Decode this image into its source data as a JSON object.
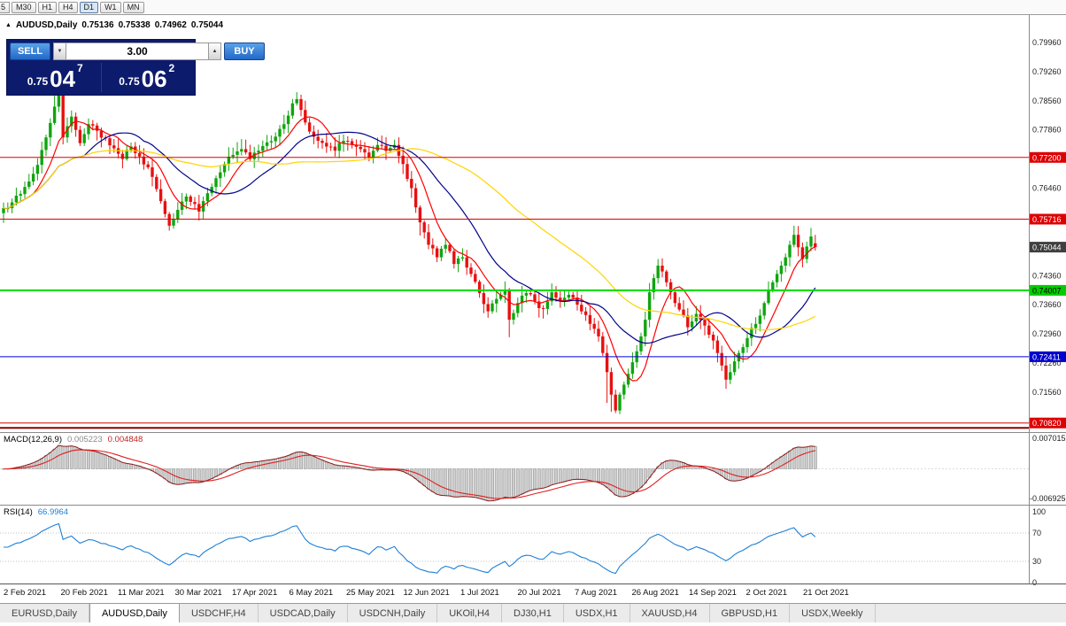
{
  "toolbar": {
    "periods": [
      "5",
      "M30",
      "H1",
      "H4",
      "D1",
      "W1",
      "MN"
    ],
    "active": "D1"
  },
  "chart_header": {
    "marker": "▲",
    "symbol": "AUDUSD,Daily",
    "open": "0.75136",
    "high": "0.75338",
    "low": "0.74962",
    "close": "0.75044"
  },
  "trade_panel": {
    "sell_label": "SELL",
    "buy_label": "BUY",
    "lot_size": "3.00",
    "spinner_down_icon": "▼",
    "spinner_up_icon": "▲",
    "sell_price": {
      "prefix": "0.75",
      "big": "04",
      "sup": "7"
    },
    "buy_price": {
      "prefix": "0.75",
      "big": "06",
      "sup": "2"
    }
  },
  "price_axis": {
    "labels": [
      "0.79960",
      "0.79260",
      "0.78560",
      "0.77860",
      "0.76460",
      "0.74360",
      "0.73660",
      "0.72960",
      "0.72260",
      "0.71560"
    ],
    "badges": [
      {
        "text": "0.77200",
        "bg": "#dd0000",
        "fg": "#ffffff"
      },
      {
        "text": "0.75716",
        "bg": "#dd0000",
        "fg": "#ffffff"
      },
      {
        "text": "0.75044",
        "bg": "#3f3f3f",
        "fg": "#ffffff"
      },
      {
        "text": "0.74007",
        "bg": "#00cc00",
        "fg": "#000000"
      },
      {
        "text": "0.72411",
        "bg": "#0000cc",
        "fg": "#ffffff"
      },
      {
        "text": "0.70820",
        "bg": "#dd0000",
        "fg": "#ffffff"
      }
    ]
  },
  "indicators": {
    "macd": {
      "label": "MACD(12,26,9)",
      "value_main": "0.005223",
      "value_signal": "0.004848",
      "axis_top": "0.007015",
      "axis_bottom": "-0.006925"
    },
    "rsi": {
      "label": "RSI(14)",
      "value": "66.9964",
      "axis": [
        "100",
        "70",
        "30",
        "0"
      ],
      "levels": [
        70,
        30
      ]
    }
  },
  "time_axis": {
    "labels": [
      "2 Feb 2021",
      "20 Feb 2021",
      "11 Mar 2021",
      "30 Mar 2021",
      "17 Apr 2021",
      "6 May 2021",
      "25 May 2021",
      "12 Jun 2021",
      "1 Jul 2021",
      "20 Jul 2021",
      "7 Aug 2021",
      "26 Aug 2021",
      "14 Sep 2021",
      "2 Oct 2021",
      "21 Oct 2021"
    ]
  },
  "tabs": {
    "items": [
      "EURUSD,Daily",
      "AUDUSD,Daily",
      "USDCHF,H4",
      "USDCAD,Daily",
      "USDCNH,Daily",
      "UKOil,H4",
      "DJ30,H1",
      "USDX,H1",
      "XAUUSD,H4",
      "GBPUSD,H1",
      "USDX,Weekly"
    ],
    "active": "AUDUSD,Daily"
  },
  "chart_data": {
    "type": "candlestick",
    "symbol": "AUDUSD",
    "timeframe": "Daily",
    "bars": 192,
    "price_range": {
      "min": 0.706,
      "max": 0.8062
    },
    "current_price": 0.75044,
    "last_candle": {
      "open": 0.75136,
      "high": 0.75338,
      "low": 0.74962,
      "close": 0.75044
    },
    "candle_colors": {
      "up": "#0fa50f",
      "down": "#e81010"
    },
    "close_anchors": [
      [
        0,
        0.7598
      ],
      [
        2,
        0.7612
      ],
      [
        4,
        0.7632
      ],
      [
        6,
        0.7662
      ],
      [
        8,
        0.7702
      ],
      [
        10,
        0.7768
      ],
      [
        12,
        0.7842
      ],
      [
        13,
        0.7875
      ],
      [
        14,
        0.7768
      ],
      [
        15,
        0.7795
      ],
      [
        16,
        0.7818
      ],
      [
        17,
        0.7786
      ],
      [
        18,
        0.7754
      ],
      [
        19,
        0.7776
      ],
      [
        20,
        0.78
      ],
      [
        22,
        0.7784
      ],
      [
        24,
        0.7766
      ],
      [
        26,
        0.7742
      ],
      [
        28,
        0.7716
      ],
      [
        30,
        0.7746
      ],
      [
        32,
        0.7722
      ],
      [
        34,
        0.7696
      ],
      [
        36,
        0.7644
      ],
      [
        38,
        0.7584
      ],
      [
        39,
        0.7556
      ],
      [
        40,
        0.7572
      ],
      [
        41,
        0.7594
      ],
      [
        43,
        0.7626
      ],
      [
        45,
        0.7608
      ],
      [
        46,
        0.759
      ],
      [
        48,
        0.7634
      ],
      [
        50,
        0.767
      ],
      [
        52,
        0.7704
      ],
      [
        54,
        0.7726
      ],
      [
        56,
        0.774
      ],
      [
        58,
        0.7716
      ],
      [
        60,
        0.7736
      ],
      [
        62,
        0.7756
      ],
      [
        64,
        0.777
      ],
      [
        66,
        0.78
      ],
      [
        68,
        0.785
      ],
      [
        69,
        0.786
      ],
      [
        70,
        0.7834
      ],
      [
        71,
        0.7804
      ],
      [
        72,
        0.7782
      ],
      [
        74,
        0.776
      ],
      [
        76,
        0.7746
      ],
      [
        78,
        0.7736
      ],
      [
        80,
        0.776
      ],
      [
        82,
        0.775
      ],
      [
        84,
        0.774
      ],
      [
        86,
        0.772
      ],
      [
        88,
        0.775
      ],
      [
        90,
        0.7736
      ],
      [
        92,
        0.775
      ],
      [
        94,
        0.7704
      ],
      [
        96,
        0.7646
      ],
      [
        98,
        0.7564
      ],
      [
        100,
        0.751
      ],
      [
        102,
        0.748
      ],
      [
        104,
        0.751
      ],
      [
        106,
        0.7464
      ],
      [
        108,
        0.748
      ],
      [
        110,
        0.744
      ],
      [
        112,
        0.7394
      ],
      [
        114,
        0.735
      ],
      [
        116,
        0.738
      ],
      [
        118,
        0.74
      ],
      [
        119,
        0.733
      ],
      [
        120,
        0.7346
      ],
      [
        121,
        0.737
      ],
      [
        123,
        0.7394
      ],
      [
        125,
        0.7374
      ],
      [
        127,
        0.7356
      ],
      [
        129,
        0.7396
      ],
      [
        131,
        0.7376
      ],
      [
        133,
        0.739
      ],
      [
        135,
        0.7366
      ],
      [
        136,
        0.735
      ],
      [
        138,
        0.732
      ],
      [
        140,
        0.729
      ],
      [
        141,
        0.725
      ],
      [
        142,
        0.7204
      ],
      [
        143,
        0.715
      ],
      [
        144,
        0.7112
      ],
      [
        145,
        0.715
      ],
      [
        146,
        0.7174
      ],
      [
        147,
        0.72
      ],
      [
        149,
        0.7254
      ],
      [
        150,
        0.729
      ],
      [
        151,
        0.733
      ],
      [
        152,
        0.7396
      ],
      [
        153,
        0.743
      ],
      [
        154,
        0.746
      ],
      [
        155,
        0.7446
      ],
      [
        156,
        0.742
      ],
      [
        157,
        0.7396
      ],
      [
        158,
        0.737
      ],
      [
        160,
        0.734
      ],
      [
        161,
        0.7312
      ],
      [
        162,
        0.7326
      ],
      [
        163,
        0.7344
      ],
      [
        164,
        0.733
      ],
      [
        165,
        0.7316
      ],
      [
        166,
        0.7294
      ],
      [
        167,
        0.728
      ],
      [
        168,
        0.725
      ],
      [
        169,
        0.722
      ],
      [
        170,
        0.7186
      ],
      [
        171,
        0.7204
      ],
      [
        172,
        0.723
      ],
      [
        173,
        0.725
      ],
      [
        174,
        0.7264
      ],
      [
        175,
        0.7286
      ],
      [
        176,
        0.731
      ],
      [
        177,
        0.732
      ],
      [
        178,
        0.734
      ],
      [
        179,
        0.737
      ],
      [
        180,
        0.74
      ],
      [
        181,
        0.742
      ],
      [
        182,
        0.744
      ],
      [
        183,
        0.746
      ],
      [
        184,
        0.748
      ],
      [
        185,
        0.751
      ],
      [
        186,
        0.7534
      ],
      [
        187,
        0.7504
      ],
      [
        188,
        0.7476
      ],
      [
        189,
        0.7506
      ],
      [
        190,
        0.753
      ],
      [
        191,
        0.75044
      ]
    ],
    "wick_overrides": [
      {
        "i": 12,
        "high": 0.7868
      },
      {
        "i": 13,
        "high": 0.7888
      },
      {
        "i": 39,
        "low": 0.7544
      },
      {
        "i": 98,
        "low": 0.7532
      },
      {
        "i": 119,
        "low": 0.7288
      },
      {
        "i": 142,
        "low": 0.713
      },
      {
        "i": 143,
        "low": 0.7109
      },
      {
        "i": 144,
        "low": 0.7106
      },
      {
        "i": 170,
        "low": 0.7164
      },
      {
        "i": 186,
        "high": 0.7556
      }
    ],
    "moving_averages": [
      {
        "period": 8,
        "color": "#ff0000"
      },
      {
        "period": 20,
        "color": "#00008b"
      },
      {
        "period": 50,
        "color": "#ffd400"
      }
    ],
    "hlines": [
      {
        "price": 0.772,
        "color": "#dd0000",
        "width": 1
      },
      {
        "price": 0.75716,
        "color": "#dd0000",
        "width": 1
      },
      {
        "price": 0.74007,
        "color": "#00dd00",
        "width": 2
      },
      {
        "price": 0.72411,
        "color": "#0000dd",
        "width": 1
      },
      {
        "price": 0.7082,
        "color": "#dd0000",
        "width": 1
      },
      {
        "price": 0.707,
        "color": "#8b0000",
        "width": 2
      }
    ]
  }
}
